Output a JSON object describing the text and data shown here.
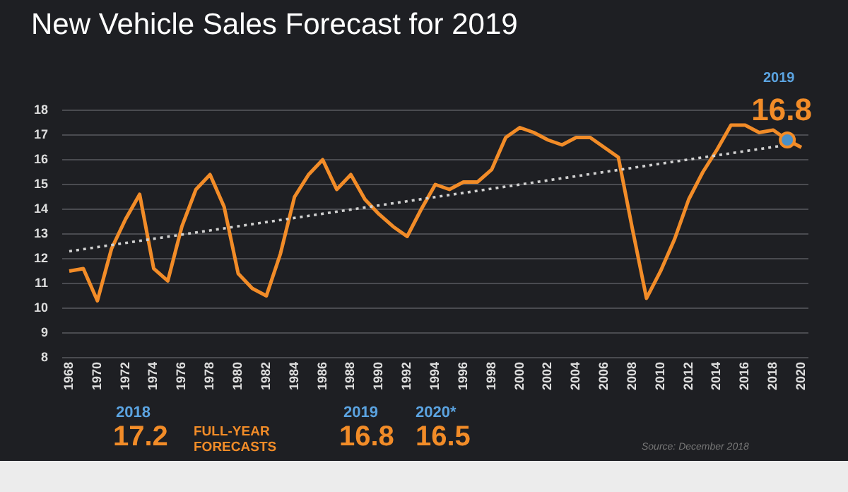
{
  "chart_data": {
    "type": "line",
    "title": "New Vehicle Sales Forecast for 2019",
    "xlim": [
      1967.5,
      2020.5
    ],
    "xticks": [
      1968,
      1970,
      1972,
      1974,
      1976,
      1978,
      1980,
      1982,
      1984,
      1986,
      1988,
      1990,
      1992,
      1994,
      1996,
      1998,
      2000,
      2002,
      2004,
      2006,
      2008,
      2010,
      2012,
      2014,
      2016,
      2018,
      2020
    ],
    "ylim": [
      8,
      18
    ],
    "yticks": [
      8,
      9,
      10,
      11,
      12,
      13,
      14,
      15,
      16,
      17,
      18
    ],
    "grid": "y",
    "legend": false,
    "marker": "none",
    "series": [
      {
        "color": "#f28c28",
        "x": [
          1968,
          1969,
          1970,
          1971,
          1972,
          1973,
          1974,
          1975,
          1976,
          1977,
          1978,
          1979,
          1980,
          1981,
          1982,
          1983,
          1984,
          1985,
          1986,
          1987,
          1988,
          1989,
          1990,
          1991,
          1992,
          1993,
          1994,
          1995,
          1996,
          1997,
          1998,
          1999,
          2000,
          2001,
          2002,
          2003,
          2004,
          2005,
          2006,
          2007,
          2008,
          2009,
          2010,
          2011,
          2012,
          2013,
          2014,
          2015,
          2016,
          2017,
          2018,
          2019,
          2020
        ],
        "values": [
          11.5,
          11.6,
          10.3,
          12.4,
          13.6,
          14.6,
          11.6,
          11.1,
          13.3,
          14.8,
          15.4,
          14.1,
          11.4,
          10.8,
          10.5,
          12.2,
          14.5,
          15.4,
          16.0,
          14.8,
          15.4,
          14.4,
          13.8,
          13.3,
          12.9,
          14.0,
          15.0,
          14.8,
          15.1,
          15.1,
          15.6,
          16.9,
          17.3,
          17.1,
          16.8,
          16.6,
          16.9,
          16.9,
          16.5,
          16.1,
          13.2,
          10.4,
          11.5,
          12.8,
          14.4,
          15.5,
          16.4,
          17.4,
          17.4,
          17.1,
          17.2,
          16.8,
          16.5
        ]
      },
      {
        "type": "line",
        "color": "#d0d0d0",
        "line_style": "dotted",
        "x": [
          1968,
          2019
        ],
        "values": [
          12.3,
          16.6
        ]
      },
      {
        "type": "scatter",
        "color": "#4a90c8",
        "marker": "circle",
        "x": [
          2019
        ],
        "values": [
          16.8
        ]
      }
    ],
    "annotations": [
      "2019",
      {
        "text": "16.8",
        "x": 2019,
        "y": 16.8
      },
      "2018",
      "17.2",
      "FULL-YEAR FORECASTS",
      "2019",
      "16.8",
      "2020*",
      "16.5",
      "Source: December 2018"
    ]
  }
}
